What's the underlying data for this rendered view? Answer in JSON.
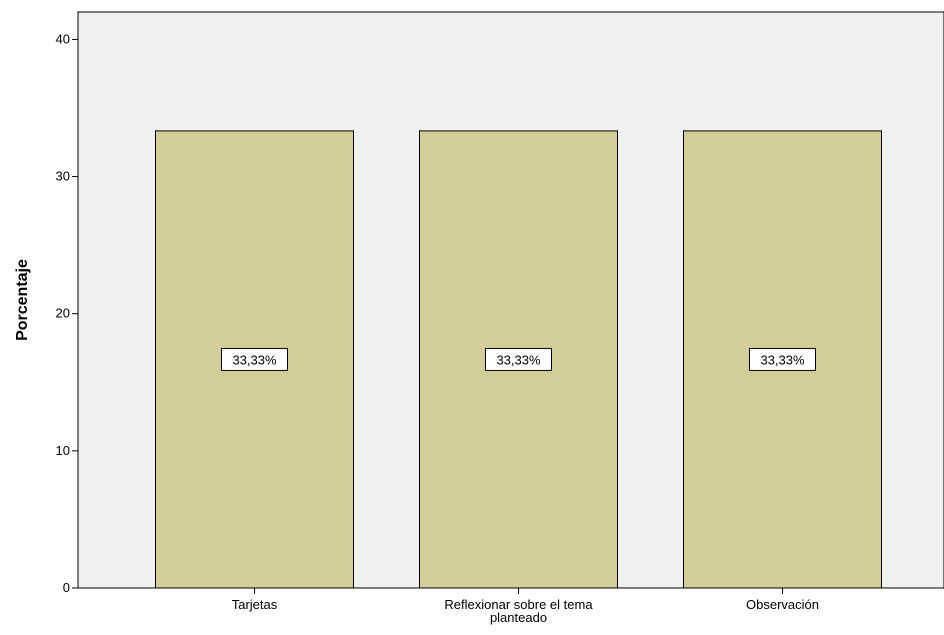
{
  "chart_data": {
    "type": "bar",
    "ylabel": "Porcentaje",
    "xlabel": "",
    "categories": [
      [
        "Tarjetas"
      ],
      [
        "Reflexionar sobre el tema",
        "planteado"
      ],
      [
        "Observación"
      ]
    ],
    "values": [
      33.33,
      33.33,
      33.33
    ],
    "data_labels": [
      "33,33%",
      "33,33%",
      "33,33%"
    ],
    "yticks": [
      0,
      10,
      20,
      30,
      40
    ],
    "ylim": [
      0,
      42
    ],
    "grid": false,
    "legend": "none",
    "colors": {
      "plot_background": "#f0f0f0",
      "bar_fill": "#d3ce97",
      "bar_stroke": "#000000",
      "axis": "#000000"
    }
  }
}
